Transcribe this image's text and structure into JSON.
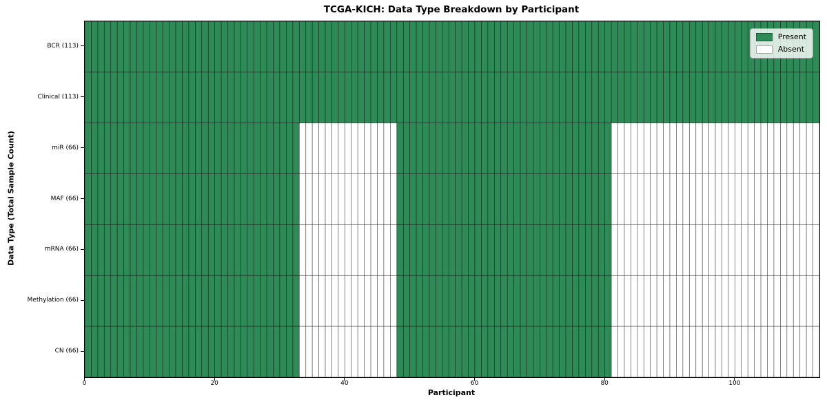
{
  "chart_data": {
    "type": "heatmap",
    "title": "TCGA-KICH: Data Type Breakdown by Participant",
    "xlabel": "Participant",
    "ylabel": "Data Type (Total Sample Count)",
    "xlim": [
      0,
      113
    ],
    "x_ticks": [
      0,
      20,
      40,
      60,
      80,
      100
    ],
    "n_participants": 113,
    "grid": false,
    "legend_position": "upper right",
    "colors": {
      "present": "#2e8b57",
      "absent": "#ffffff",
      "cell_edge": "#000000",
      "plot_border": "#000000"
    },
    "legend": {
      "items": [
        {
          "label": "Present",
          "color": "#2e8b57"
        },
        {
          "label": "Absent",
          "color": "#ffffff"
        }
      ]
    },
    "rows": [
      {
        "label": "BCR (113)",
        "total": 113,
        "present_segments": [
          [
            0,
            113
          ]
        ]
      },
      {
        "label": "Clinical (113)",
        "total": 113,
        "present_segments": [
          [
            0,
            113
          ]
        ]
      },
      {
        "label": "miR (66)",
        "total": 66,
        "present_segments": [
          [
            0,
            33
          ],
          [
            48,
            81
          ]
        ]
      },
      {
        "label": "MAF (66)",
        "total": 66,
        "present_segments": [
          [
            0,
            33
          ],
          [
            48,
            81
          ]
        ]
      },
      {
        "label": "mRNA (66)",
        "total": 66,
        "present_segments": [
          [
            0,
            33
          ],
          [
            48,
            81
          ]
        ]
      },
      {
        "label": "Methylation (66)",
        "total": 66,
        "present_segments": [
          [
            0,
            33
          ],
          [
            48,
            81
          ]
        ]
      },
      {
        "label": "CN (66)",
        "total": 66,
        "present_segments": [
          [
            0,
            33
          ],
          [
            48,
            81
          ]
        ]
      }
    ]
  }
}
